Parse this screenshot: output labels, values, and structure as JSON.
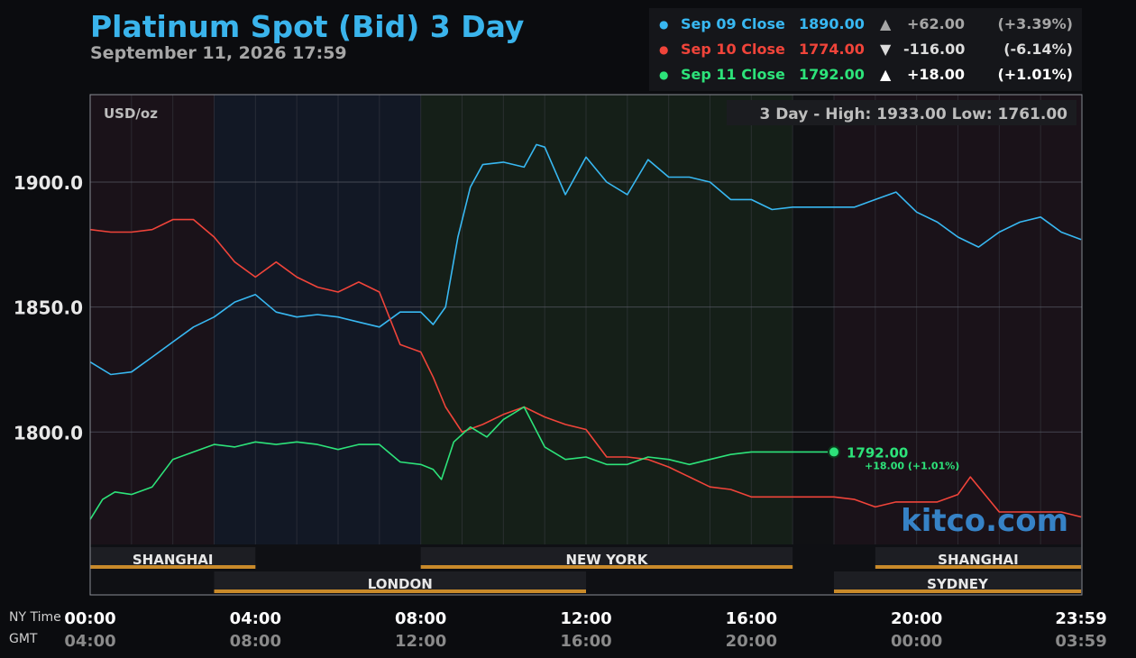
{
  "header": {
    "title": "Platinum Spot (Bid) 3 Day",
    "timestamp": "September 11, 2026 17:59"
  },
  "legend": [
    {
      "label": "Sep 09 Close",
      "value": "1890.00",
      "arrow": "▲",
      "change": "+62.00",
      "percent": "(+3.39%)",
      "color": "#38b8f2",
      "change_color": "#a6a6a6"
    },
    {
      "label": "Sep 10 Close",
      "value": "1774.00",
      "arrow": "▼",
      "change": "-116.00",
      "percent": "(-6.14%)",
      "color": "#f0443a",
      "change_color": "#dcdcdc"
    },
    {
      "label": "Sep 11 Close",
      "value": "1792.00",
      "arrow": "▲",
      "change": "+18.00",
      "percent": "(+1.01%)",
      "color": "#2de37a",
      "change_color": "#ffffff"
    }
  ],
  "plot": {
    "unit_label": "USD/oz",
    "high_low_text": "3 Day - High: 1933.00  Low: 1761.00",
    "watermark": "kitco.com",
    "current_value_label": "1792.00",
    "current_change_label": "+18.00 (+1.01%)",
    "ny_time_label": "NY Time",
    "gmt_label": "GMT"
  },
  "colors": {
    "title": "#3ab4ec",
    "sep09": "#38b8f2",
    "sep10": "#f0443a",
    "sep11": "#2de37a",
    "session_bar": "#c98a2a",
    "watermark": "#3a8fd9"
  },
  "chart_data": {
    "type": "line",
    "title": "Platinum Spot (Bid) 3 Day",
    "ylabel": "USD/oz",
    "x_unit": "NY time (hours)",
    "xlim": [
      0,
      24
    ],
    "ylim": [
      1755,
      1935
    ],
    "y_ticks": [
      1800.0,
      1850.0,
      1900.0
    ],
    "y_tick_labels": [
      "1800.0",
      "1850.0",
      "1900.0"
    ],
    "x_ticks": [
      0,
      4,
      8,
      12,
      16,
      20,
      23.98
    ],
    "x_tick_labels": [
      "00:00",
      "04:00",
      "08:00",
      "12:00",
      "16:00",
      "20:00",
      "23:59"
    ],
    "gmt_tick_labels": [
      "04:00",
      "08:00",
      "12:00",
      "16:00",
      "20:00",
      "00:00",
      "03:59"
    ],
    "grid": true,
    "legend_position": "top-right",
    "high": 1933.0,
    "low": 1761.0,
    "sessions": [
      {
        "name": "SHANGHAI",
        "start": 0,
        "end": 4,
        "row": 1
      },
      {
        "name": "NEW YORK",
        "start": 8,
        "end": 17,
        "row": 1
      },
      {
        "name": "SHANGHAI",
        "start": 19,
        "end": 23.98,
        "row": 1
      },
      {
        "name": "LONDON",
        "start": 3,
        "end": 12,
        "row": 2
      },
      {
        "name": "SYDNEY",
        "start": 18,
        "end": 23.98,
        "row": 2
      }
    ],
    "series": [
      {
        "name": "Sep 09 Close",
        "color": "#38b8f2",
        "x": [
          0,
          0.5,
          1,
          1.5,
          2,
          2.5,
          3,
          3.5,
          4,
          4.5,
          5,
          5.5,
          6,
          6.5,
          7,
          7.5,
          8,
          8.3,
          8.6,
          8.9,
          9.2,
          9.5,
          10,
          10.5,
          10.8,
          11,
          11.5,
          12,
          12.5,
          13,
          13.5,
          14,
          14.5,
          15,
          15.5,
          16,
          16.5,
          17,
          17.5,
          18,
          18.5,
          19,
          19.5,
          20,
          20.5,
          21,
          21.5,
          22,
          22.5,
          23,
          23.5,
          23.98
        ],
        "y": [
          1828,
          1823,
          1824,
          1830,
          1836,
          1842,
          1846,
          1852,
          1855,
          1848,
          1846,
          1847,
          1846,
          1844,
          1842,
          1848,
          1848,
          1843,
          1850,
          1878,
          1898,
          1907,
          1908,
          1906,
          1915,
          1914,
          1895,
          1910,
          1900,
          1895,
          1909,
          1902,
          1902,
          1900,
          1893,
          1893,
          1889,
          1890,
          1890,
          1890,
          1890,
          1893,
          1896,
          1888,
          1884,
          1878,
          1874,
          1880,
          1884,
          1886,
          1880,
          1877
        ]
      },
      {
        "name": "Sep 10 Close",
        "color": "#f0443a",
        "x": [
          0,
          0.5,
          1,
          1.5,
          2,
          2.5,
          3,
          3.5,
          4,
          4.5,
          5,
          5.5,
          6,
          6.5,
          7,
          7.5,
          8,
          8.3,
          8.6,
          9,
          9.5,
          10,
          10.5,
          11,
          11.5,
          12,
          12.5,
          13,
          13.5,
          14,
          14.5,
          15,
          15.5,
          16,
          16.5,
          17,
          17.5,
          18,
          18.5,
          19,
          19.5,
          20,
          20.5,
          21,
          21.3,
          21.6,
          22,
          22.5,
          23,
          23.5,
          23.98
        ],
        "y": [
          1881,
          1880,
          1880,
          1881,
          1885,
          1885,
          1878,
          1868,
          1862,
          1868,
          1862,
          1858,
          1856,
          1860,
          1856,
          1835,
          1832,
          1822,
          1810,
          1800,
          1803,
          1807,
          1810,
          1806,
          1803,
          1801,
          1790,
          1790,
          1789,
          1786,
          1782,
          1778,
          1777,
          1774,
          1774,
          1774,
          1774,
          1774,
          1773,
          1770,
          1772,
          1772,
          1772,
          1775,
          1782,
          1776,
          1768,
          1768,
          1768,
          1768,
          1766
        ]
      },
      {
        "name": "Sep 11 Close",
        "color": "#2de37a",
        "x": [
          0,
          0.3,
          0.6,
          1,
          1.5,
          2,
          2.5,
          3,
          3.5,
          4,
          4.5,
          5,
          5.5,
          6,
          6.5,
          7,
          7.5,
          8,
          8.3,
          8.5,
          8.8,
          9.2,
          9.6,
          10,
          10.5,
          11,
          11.5,
          12,
          12.5,
          13,
          13.5,
          14,
          14.5,
          15,
          15.5,
          16,
          16.5,
          17,
          17.5,
          18
        ],
        "y": [
          1765,
          1773,
          1776,
          1775,
          1778,
          1789,
          1792,
          1795,
          1794,
          1796,
          1795,
          1796,
          1795,
          1793,
          1795,
          1795,
          1788,
          1787,
          1785,
          1781,
          1796,
          1802,
          1798,
          1805,
          1810,
          1794,
          1789,
          1790,
          1787,
          1787,
          1790,
          1789,
          1787,
          1789,
          1791,
          1792,
          1792,
          1792,
          1792,
          1792
        ]
      }
    ]
  }
}
